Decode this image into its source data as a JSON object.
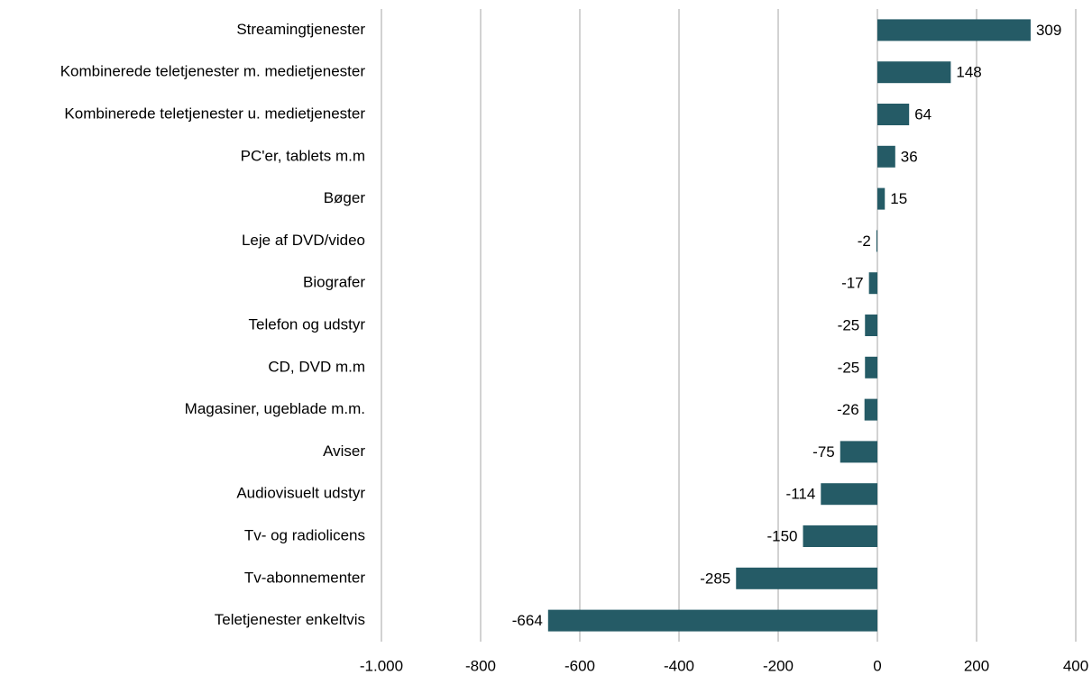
{
  "chart_data": {
    "type": "hbar",
    "categories": [
      "Streamingtjenester",
      "Kombinerede teletjenester m. medietjenester",
      "Kombinerede teletjenester u. medietjenester",
      "PC'er, tablets m.m",
      "Bøger",
      "Leje af DVD/video",
      "Biografer",
      "Telefon og udstyr",
      "CD, DVD m.m",
      "Magasiner, ugeblade m.m.",
      "Aviser",
      "Audiovisuelt udstyr",
      "Tv- og radiolicens",
      "Tv-abonnementer",
      "Teletjenester enkeltvis"
    ],
    "values": [
      309,
      148,
      64,
      36,
      15,
      -2,
      -17,
      -25,
      -25,
      -26,
      -75,
      -114,
      -150,
      -285,
      -664
    ],
    "color": "#255b66",
    "xlim": [
      -1000,
      400
    ],
    "xticks": [
      {
        "value": -1000,
        "label": "-1.000"
      },
      -800,
      -600,
      -400,
      -200,
      0,
      200,
      400
    ],
    "grid": true
  }
}
